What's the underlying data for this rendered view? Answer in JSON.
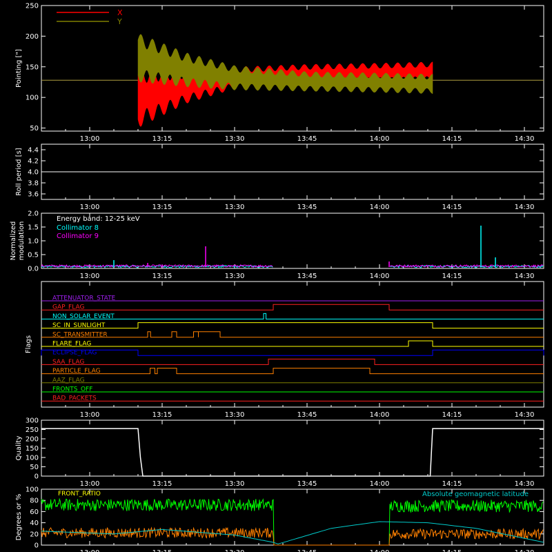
{
  "time_ticks": [
    "13:00",
    "13:15",
    "13:30",
    "13:45",
    "14:00",
    "14:15",
    "14:30"
  ],
  "colors": {
    "background": "#000000",
    "axes": "#ffffff",
    "pointing_x": "#ff0000",
    "pointing_y": "#808000",
    "collimator_8": "#00ffff",
    "collimator_9": "#ff00ff",
    "green": "#00ff00",
    "orange": "#ff8000",
    "cyan": "#00cccc",
    "white": "#ffffff"
  },
  "chart_data": [
    {
      "id": "pointing",
      "type": "area",
      "ylabel": "Pointing [\"]",
      "ylim": [
        45,
        250
      ],
      "yticks": [
        50,
        100,
        150,
        200,
        250
      ],
      "xlim": [
        "12:50",
        "14:34"
      ],
      "legend": {
        "placement": "top-left",
        "entries": [
          {
            "name": "X",
            "color": "#ff0000"
          },
          {
            "name": "Y",
            "color": "#808000"
          }
        ]
      },
      "baseline": {
        "value": 128,
        "before": "13:10",
        "after": "14:11"
      },
      "series": [
        {
          "name": "X",
          "center": [
            [
              "13:10",
              100
            ],
            [
              "13:20",
              118
            ],
            [
              "13:30",
              132
            ],
            [
              "13:45",
              138
            ],
            [
              "14:00",
              140
            ],
            [
              "14:11",
              142
            ]
          ],
          "amplitude": [
            [
              "13:10",
              50
            ],
            [
              "13:20",
              28
            ],
            [
              "13:30",
              18
            ],
            [
              "13:45",
              16
            ],
            [
              "14:00",
              16
            ],
            [
              "14:11",
              16
            ]
          ]
        },
        {
          "name": "Y",
          "center": [
            [
              "13:10",
              165
            ],
            [
              "13:20",
              145
            ],
            [
              "13:30",
              132
            ],
            [
              "13:45",
              126
            ],
            [
              "14:00",
              124
            ],
            [
              "14:11",
              122
            ]
          ],
          "amplitude": [
            [
              "13:10",
              40
            ],
            [
              "13:20",
              28
            ],
            [
              "13:30",
              20
            ],
            [
              "13:45",
              16
            ],
            [
              "14:00",
              16
            ],
            [
              "14:11",
              16
            ]
          ]
        }
      ]
    },
    {
      "id": "roll",
      "type": "line",
      "ylabel": "Roll period [s]",
      "ylim": [
        3.5,
        4.5
      ],
      "yticks": [
        3.6,
        3.8,
        4.0,
        4.2,
        4.4
      ],
      "xlim": [
        "12:50",
        "14:34"
      ],
      "series": [
        {
          "name": "",
          "values": [
            [
              "12:50",
              4.0
            ],
            [
              "14:34",
              4.0
            ]
          ]
        }
      ]
    },
    {
      "id": "modulation",
      "type": "line",
      "ylabel": "Normalized modulation",
      "ylim": [
        0,
        2.0
      ],
      "yticks": [
        0.0,
        0.5,
        1.0,
        1.5,
        2.0
      ],
      "xlim": [
        "12:50",
        "14:34"
      ],
      "annotation": "Energy band: 12-25 keV",
      "legend": {
        "placement": "top-left",
        "entries": [
          {
            "name": "Collimator 8",
            "color": "#00ffff"
          },
          {
            "name": "Collimator 9",
            "color": "#ff00ff"
          }
        ]
      },
      "gaps": [
        [
          "13:38",
          "14:02"
        ]
      ],
      "spikes": [
        {
          "series": "Collimator 8",
          "time": "13:05",
          "value": 0.3
        },
        {
          "series": "Collimator 9",
          "time": "13:24",
          "value": 0.8
        },
        {
          "series": "Collimator 9",
          "time": "13:12",
          "value": 0.2
        },
        {
          "series": "Collimator 8",
          "time": "14:21",
          "value": 1.55
        },
        {
          "series": "Collimator 9",
          "time": "14:02",
          "value": 0.25
        },
        {
          "series": "Collimator 8",
          "time": "14:24",
          "value": 0.4
        }
      ]
    },
    {
      "id": "flags",
      "type": "table",
      "ylabel": "Flags",
      "xlim": [
        "12:50",
        "14:34"
      ],
      "rows": [
        {
          "name": "ATTENUATOR_STATE",
          "color": "#a020f0",
          "on": []
        },
        {
          "name": "GAP_FLAG",
          "color": "#ff2020",
          "on": [
            [
              "13:38",
              "14:02"
            ]
          ]
        },
        {
          "name": "NON_SOLAR_EVENT",
          "color": "#00ffff",
          "on": [
            [
              "13:36",
              "13:36.5"
            ]
          ]
        },
        {
          "name": "SC_IN_SUNLIGHT",
          "color": "#ffff00",
          "on": [
            [
              "13:10",
              "14:11"
            ]
          ]
        },
        {
          "name": "SC_TRANSMITTER",
          "color": "#ff8000",
          "on": [
            [
              "13:12",
              "13:12.6"
            ],
            [
              "13:17",
              "13:18"
            ],
            [
              "13:21.5",
              "13:22.5"
            ],
            [
              "13:22.5",
              "13:27"
            ]
          ]
        },
        {
          "name": "FLARE_FLAG",
          "color": "#ffff00",
          "on": [
            [
              "14:06",
              "14:11"
            ]
          ]
        },
        {
          "name": "ECLIPSE_FLAG",
          "color": "#0000ff",
          "on": [
            [
              "12:50",
              "13:10"
            ],
            [
              "14:11",
              "14:34"
            ]
          ]
        },
        {
          "name": "SAA_FLAG",
          "color": "#ff2020",
          "on": [
            [
              "13:37",
              "13:59"
            ]
          ]
        },
        {
          "name": "PARTICLE_FLAG",
          "color": "#ff8000",
          "on": [
            [
              "13:12.5",
              "13:13.5"
            ],
            [
              "13:14",
              "13:18"
            ],
            [
              "13:38",
              "13:58"
            ]
          ]
        },
        {
          "name": "AAZ_FLAG",
          "color": "#808000",
          "on": []
        },
        {
          "name": "FRONTS_OFF",
          "color": "#00ff00",
          "on": []
        },
        {
          "name": "BAD_PACKETS",
          "color": "#ff2020",
          "on": []
        }
      ]
    },
    {
      "id": "quality",
      "type": "line",
      "ylabel": "Quality",
      "ylim": [
        0,
        300
      ],
      "yticks": [
        0,
        50,
        100,
        150,
        200,
        250,
        300
      ],
      "xlim": [
        "12:50",
        "14:34"
      ],
      "series": [
        {
          "name": "",
          "values": [
            [
              "12:50",
              255
            ],
            [
              "13:10",
              255
            ],
            [
              "13:10.5",
              100
            ],
            [
              "13:11",
              0
            ],
            [
              "14:10.5",
              0
            ],
            [
              "14:11",
              255
            ],
            [
              "14:34",
              255
            ]
          ]
        }
      ]
    },
    {
      "id": "ratios",
      "type": "line",
      "ylabel": "Degrees or %",
      "ylim": [
        0,
        100
      ],
      "yticks": [
        0,
        20,
        40,
        60,
        80,
        100
      ],
      "xlim": [
        "12:50",
        "14:34"
      ],
      "legend_left": [
        {
          "name": "FRONT_RATIO",
          "color": "#ffff00"
        },
        {
          "name": "",
          "color": "#00ff00"
        },
        {
          "name": "",
          "color": "#ff8000"
        }
      ],
      "legend_right": [
        {
          "name": "Absolute geomagnetic latitude",
          "color": "#00cccc"
        }
      ],
      "gaps": [
        [
          "13:38",
          "14:02"
        ]
      ],
      "series": [
        {
          "name": "green",
          "level_before": 72,
          "level_after": 70
        },
        {
          "name": "orange",
          "level_before": 22,
          "level_after": 20
        },
        {
          "name": "latitude",
          "values": [
            [
              "12:50",
              25
            ],
            [
              "13:05",
              20
            ],
            [
              "13:15",
              28
            ],
            [
              "13:30",
              18
            ],
            [
              "13:38",
              5
            ],
            [
              "13:39",
              2
            ],
            [
              "13:50",
              30
            ],
            [
              "14:00",
              42
            ],
            [
              "14:10",
              40
            ],
            [
              "14:20",
              30
            ],
            [
              "14:34",
              5
            ]
          ]
        }
      ]
    }
  ]
}
